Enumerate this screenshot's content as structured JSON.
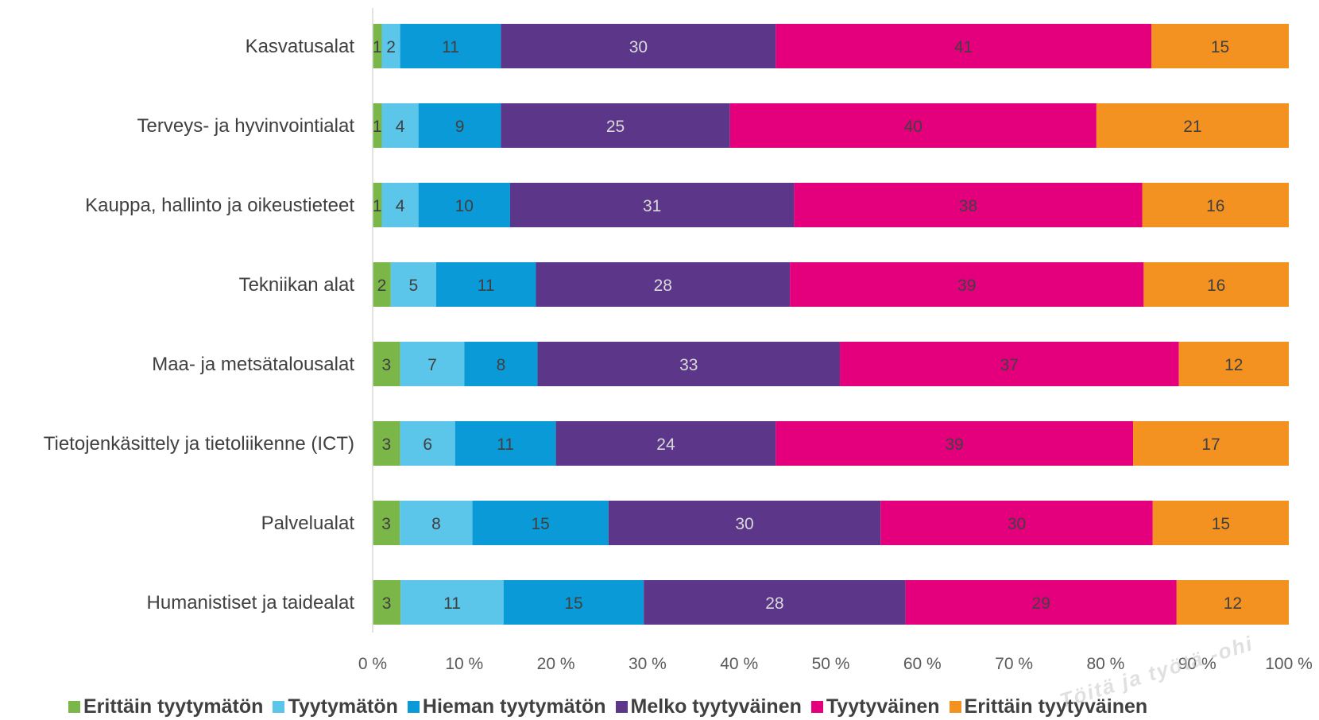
{
  "chart_data": {
    "type": "bar",
    "orientation": "horizontal",
    "stacked": "percent",
    "categories": [
      "Kasvatusalat",
      "Terveys- ja hyvinvointialat",
      "Kauppa, hallinto ja oikeustieteet",
      "Tekniikan alat",
      "Maa- ja metsätalousalat",
      "Tietojenkäsittely ja tietoliikenne (ICT)",
      "Palvelualat",
      "Humanistiset ja taidealat"
    ],
    "series": [
      {
        "name": "Erittäin tyytymätön",
        "color": "#7ab648",
        "label_color": "#404040",
        "values": [
          1,
          1,
          1,
          2,
          3,
          3,
          3,
          3
        ]
      },
      {
        "name": "Tyytymätön",
        "color": "#5bc5ea",
        "label_color": "#404040",
        "values": [
          2,
          4,
          4,
          5,
          7,
          6,
          8,
          11
        ]
      },
      {
        "name": "Hieman tyytymätön",
        "color": "#0a9ad7",
        "label_color": "#404040",
        "values": [
          11,
          9,
          10,
          11,
          8,
          11,
          15,
          15
        ]
      },
      {
        "name": "Melko tyytyväinen",
        "color": "#5c3789",
        "label_color": "#d9d9d9",
        "values": [
          30,
          25,
          31,
          28,
          33,
          24,
          30,
          28
        ]
      },
      {
        "name": "Tyytyväinen",
        "color": "#e4007c",
        "label_color": "#404040",
        "values": [
          41,
          40,
          38,
          39,
          37,
          39,
          30,
          29
        ]
      },
      {
        "name": "Erittäin tyytyväinen",
        "color": "#f39221",
        "label_color": "#404040",
        "values": [
          15,
          21,
          16,
          16,
          12,
          17,
          15,
          12
        ]
      }
    ],
    "x_ticks": [
      "0 %",
      "10 %",
      "20 %",
      "30 %",
      "40 %",
      "50 %",
      "60 %",
      "70 %",
      "80 %",
      "90 %",
      "100 %"
    ],
    "xlim": [
      0,
      100
    ],
    "grid": false,
    "legend_position": "bottom"
  },
  "watermark": "Töitä ja työtä -ohi"
}
